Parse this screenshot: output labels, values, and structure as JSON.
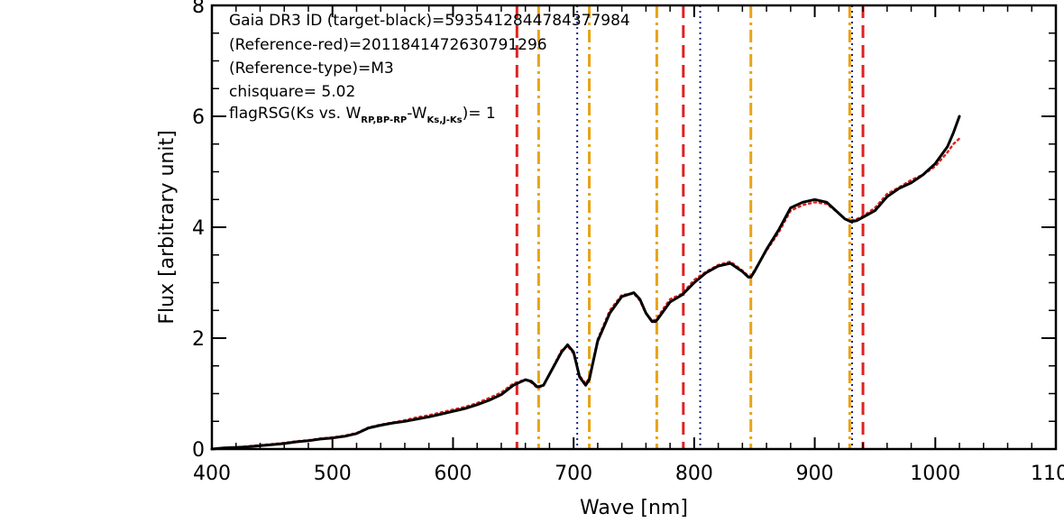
{
  "chart_data": {
    "type": "line",
    "xlabel": "Wave [nm]",
    "ylabel": "Flux [arbitrary unit]",
    "xlim": [
      400,
      1100
    ],
    "ylim": [
      0,
      8
    ],
    "x_ticks": [
      "400",
      "500",
      "600",
      "700",
      "800",
      "900",
      "1000",
      "1100"
    ],
    "y_ticks": [
      "0",
      "2",
      "4",
      "6",
      "8"
    ],
    "annotations": {
      "line1": "Gaia DR3 ID (target-black)=5935412844784377984",
      "line2": "(Reference-red)=2011841472630791296",
      "line3": "(Reference-type)=M3",
      "line4": "chisquare= 5.02",
      "line5_pre": "flagRSG(Ks vs. W",
      "line5_sub1": "RP,BP-RP",
      "line5_mid": "-W",
      "line5_sub2": "Ks,J-Ks",
      "line5_post": ")= 1"
    },
    "series": [
      {
        "name": "target-black",
        "color": "#000000",
        "style": "solid",
        "x": [
          400,
          410,
          420,
          430,
          440,
          450,
          460,
          470,
          480,
          490,
          500,
          510,
          520,
          530,
          540,
          550,
          560,
          570,
          580,
          590,
          600,
          610,
          620,
          630,
          640,
          650,
          655,
          660,
          665,
          670,
          675,
          680,
          690,
          695,
          700,
          705,
          710,
          713,
          716,
          720,
          730,
          740,
          750,
          755,
          760,
          765,
          768,
          770,
          775,
          780,
          790,
          800,
          810,
          820,
          830,
          840,
          845,
          847,
          850,
          860,
          870,
          880,
          890,
          900,
          910,
          920,
          925,
          930,
          935,
          940,
          950,
          960,
          970,
          980,
          990,
          1000,
          1010,
          1015,
          1020
        ],
        "y": [
          0.0,
          0.02,
          0.03,
          0.04,
          0.06,
          0.08,
          0.1,
          0.13,
          0.15,
          0.18,
          0.2,
          0.23,
          0.28,
          0.38,
          0.43,
          0.47,
          0.5,
          0.54,
          0.58,
          0.63,
          0.68,
          0.73,
          0.8,
          0.88,
          0.98,
          1.15,
          1.2,
          1.25,
          1.22,
          1.12,
          1.15,
          1.35,
          1.75,
          1.88,
          1.75,
          1.3,
          1.15,
          1.25,
          1.55,
          1.95,
          2.45,
          2.75,
          2.82,
          2.7,
          2.45,
          2.3,
          2.3,
          2.35,
          2.5,
          2.65,
          2.78,
          3.0,
          3.18,
          3.3,
          3.35,
          3.2,
          3.1,
          3.1,
          3.2,
          3.6,
          3.95,
          4.35,
          4.45,
          4.5,
          4.45,
          4.25,
          4.15,
          4.1,
          4.12,
          4.18,
          4.3,
          4.55,
          4.7,
          4.8,
          4.95,
          5.15,
          5.45,
          5.7,
          6.0
        ]
      },
      {
        "name": "reference-red",
        "color": "#dd2222",
        "style": "dotted",
        "x": [
          400,
          410,
          420,
          430,
          440,
          450,
          460,
          470,
          480,
          490,
          500,
          510,
          520,
          530,
          540,
          550,
          560,
          570,
          580,
          590,
          600,
          610,
          620,
          630,
          640,
          650,
          655,
          660,
          665,
          670,
          675,
          680,
          690,
          695,
          700,
          705,
          710,
          713,
          716,
          720,
          730,
          740,
          750,
          755,
          760,
          765,
          768,
          770,
          775,
          780,
          790,
          800,
          810,
          820,
          830,
          840,
          845,
          847,
          850,
          860,
          870,
          880,
          890,
          900,
          910,
          920,
          925,
          930,
          935,
          940,
          950,
          960,
          970,
          980,
          990,
          1000,
          1010,
          1015,
          1020
        ],
        "y": [
          0.0,
          0.02,
          0.03,
          0.05,
          0.07,
          0.09,
          0.11,
          0.14,
          0.16,
          0.19,
          0.21,
          0.24,
          0.29,
          0.39,
          0.44,
          0.48,
          0.52,
          0.57,
          0.61,
          0.66,
          0.71,
          0.76,
          0.83,
          0.92,
          1.02,
          1.18,
          1.22,
          1.25,
          1.2,
          1.1,
          1.14,
          1.35,
          1.78,
          1.86,
          1.72,
          1.32,
          1.18,
          1.28,
          1.58,
          1.98,
          2.5,
          2.78,
          2.8,
          2.68,
          2.44,
          2.32,
          2.33,
          2.38,
          2.55,
          2.7,
          2.8,
          3.05,
          3.2,
          3.32,
          3.38,
          3.22,
          3.12,
          3.12,
          3.22,
          3.58,
          3.9,
          4.3,
          4.4,
          4.45,
          4.42,
          4.25,
          4.15,
          4.12,
          4.15,
          4.2,
          4.35,
          4.6,
          4.72,
          4.85,
          4.95,
          5.1,
          5.35,
          5.5,
          5.6
        ]
      }
    ],
    "vertical_lines": [
      {
        "x": 653,
        "color": "#dd2222",
        "style": "dashed"
      },
      {
        "x": 671,
        "color": "#e8a317",
        "style": "dashdot"
      },
      {
        "x": 703,
        "color": "#1a237e",
        "style": "dotted"
      },
      {
        "x": 713,
        "color": "#e8a317",
        "style": "dashdot"
      },
      {
        "x": 769,
        "color": "#e8a317",
        "style": "dashdot"
      },
      {
        "x": 791,
        "color": "#dd2222",
        "style": "dashed"
      },
      {
        "x": 805,
        "color": "#1a237e",
        "style": "dotted"
      },
      {
        "x": 847,
        "color": "#e8a317",
        "style": "dashdot"
      },
      {
        "x": 929,
        "color": "#e8a317",
        "style": "dashdot"
      },
      {
        "x": 931,
        "color": "#1a237e",
        "style": "dotted"
      },
      {
        "x": 940,
        "color": "#dd2222",
        "style": "dashed"
      }
    ]
  }
}
